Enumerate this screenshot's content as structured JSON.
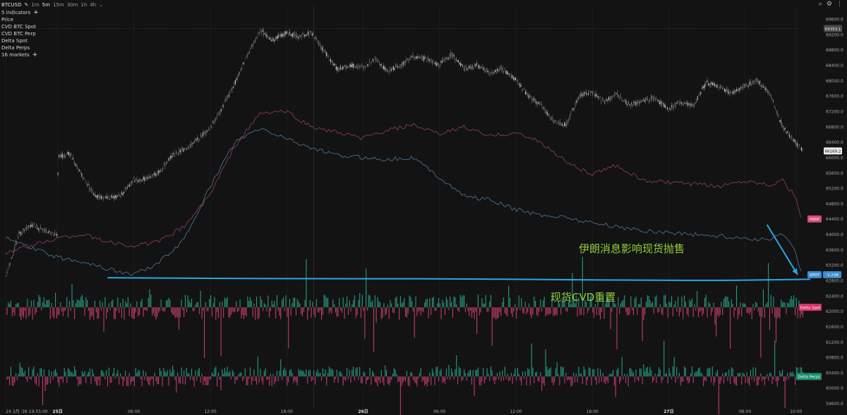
{
  "toolbar": {
    "symbol": "BTCUSD",
    "timeframes": [
      "1m",
      "5m",
      "15m",
      "30m",
      "1h",
      "4h"
    ],
    "active_timeframe": "5m"
  },
  "legend": {
    "indicators_label": "5 indicators",
    "items": [
      "Price",
      "CVD BTC Spot",
      "CVD BTC Perp",
      "Delta Spot",
      "Delta Perps"
    ],
    "markets_label": "16 markets"
  },
  "annotations": {
    "arrow_text": "伊朗消息影响现货抛售",
    "line_text": "现货CVD重置"
  },
  "colors": {
    "background": "#131313",
    "price": "#9c9c9c",
    "cvd_spot": "#4a6f8c",
    "cvd_perp": "#8c3a50",
    "delta_up": "#2bb497",
    "delta_down": "#e0457a",
    "annotation_line": "#27a9e8",
    "annotation_text": "#8fce3a"
  },
  "chart_data": {
    "type": "line",
    "x_axis": {
      "labels": [
        {
          "t": 0,
          "text": "24 2月 '26  19:55:00"
        },
        {
          "t": 4.08,
          "text": "25日"
        },
        {
          "t": 10.08,
          "text": "06:00"
        },
        {
          "t": 16.08,
          "text": "12:00"
        },
        {
          "t": 22.08,
          "text": "18:00"
        },
        {
          "t": 28.08,
          "text": "26日"
        },
        {
          "t": 34.08,
          "text": "06:00"
        },
        {
          "t": 40.08,
          "text": "12:00"
        },
        {
          "t": 46.08,
          "text": "18:00"
        },
        {
          "t": 52.08,
          "text": "27日"
        },
        {
          "t": 58.08,
          "text": "06:00"
        },
        {
          "t": 62.08,
          "text": "10:00"
        }
      ],
      "range_hours": [
        0,
        63.2
      ]
    },
    "y_axis": {
      "ticks": [
        69600,
        69200,
        68800,
        68400,
        68000,
        67600,
        67200,
        66800,
        66400,
        66000,
        65600,
        65200,
        64800,
        64400,
        64000,
        63600,
        63200,
        62800,
        62400,
        62000,
        61600,
        61200,
        60800,
        60400,
        60000,
        59600
      ],
      "tick_labels": [
        "69600.0",
        "69200.0",
        "68800.0",
        "68400.0",
        "68000.0",
        "67600.0",
        "67200.0",
        "66800.0",
        "66400.0",
        "66000.0",
        "65600.0",
        "65200.0",
        "64800.0",
        "64400.0",
        "64000.0",
        "63600.0",
        "63200.0",
        "62800.0",
        "62400.0",
        "62000.0",
        "61600.0",
        "61200.0",
        "60800.0",
        "60400.0",
        "60000.0",
        "59600.0"
      ],
      "range": [
        59500,
        69950
      ]
    },
    "badges": {
      "crosshair_price": "69353.1",
      "last_price": "66169.2",
      "perp_label": "PERP",
      "spot_label": "SPOT",
      "spot_value": "-1.238",
      "delta_spot_label": "Delta Spot",
      "delta_perps_label": "Delta Perps"
    },
    "series": [
      {
        "name": "Price",
        "x": [
          0,
          1,
          2,
          3,
          4,
          4.1,
          5,
          6,
          7,
          8,
          9,
          10,
          11,
          12,
          13,
          14,
          15,
          16,
          17,
          18,
          19,
          20,
          21,
          22,
          23,
          24,
          25,
          26,
          27,
          28,
          29,
          30,
          31,
          32,
          33,
          34,
          35,
          36,
          37,
          38,
          39,
          40,
          41,
          42,
          43,
          44,
          45,
          46,
          47,
          48,
          49,
          50,
          51,
          52,
          53,
          54,
          55,
          56,
          57,
          58,
          59,
          60,
          61,
          62,
          62.6
        ],
        "y": [
          62900,
          64000,
          64250,
          64100,
          64000,
          66000,
          66100,
          65500,
          65000,
          64950,
          65000,
          65400,
          65450,
          65600,
          66050,
          66200,
          66450,
          66750,
          67300,
          67950,
          68700,
          69300,
          69050,
          69250,
          69150,
          69250,
          68750,
          68300,
          68400,
          68350,
          68550,
          68250,
          68400,
          68650,
          68550,
          68400,
          68700,
          68300,
          68400,
          68200,
          68300,
          68050,
          67600,
          67350,
          66950,
          66850,
          67600,
          67700,
          67450,
          67650,
          67350,
          67500,
          67550,
          67250,
          67450,
          67350,
          67950,
          67850,
          67650,
          67850,
          68000,
          67650,
          66800,
          66400,
          66200
        ]
      },
      {
        "name": "CVD BTC Perp",
        "x": [
          0,
          2,
          4,
          6,
          8,
          10,
          12,
          14,
          16,
          18,
          20,
          22,
          24,
          26,
          28,
          30,
          32,
          34,
          36,
          38,
          40,
          42,
          44,
          46,
          48,
          50,
          52,
          54,
          56,
          58,
          60,
          61,
          62,
          62.6
        ],
        "y": [
          63500,
          63700,
          63900,
          64000,
          63800,
          63700,
          63800,
          64200,
          65000,
          66300,
          67150,
          67200,
          66800,
          66650,
          66500,
          66700,
          66850,
          66600,
          66800,
          66550,
          66650,
          66400,
          65900,
          65550,
          65800,
          65400,
          65350,
          65300,
          65250,
          65400,
          65300,
          65400,
          65000,
          64300
        ]
      },
      {
        "name": "CVD BTC Spot",
        "x": [
          0,
          2,
          4,
          6,
          8,
          10,
          12,
          14,
          16,
          18,
          20,
          22,
          24,
          26,
          28,
          30,
          32,
          34,
          36,
          38,
          40,
          42,
          44,
          46,
          48,
          50,
          52,
          54,
          56,
          58,
          60,
          61,
          62,
          62.6
        ],
        "y": [
          63900,
          63650,
          63400,
          63300,
          63100,
          62950,
          63250,
          63850,
          65200,
          66400,
          66750,
          66500,
          66250,
          66050,
          66000,
          65950,
          66000,
          65500,
          65000,
          64900,
          64650,
          64500,
          64450,
          64300,
          64200,
          64100,
          64050,
          64000,
          63950,
          63900,
          63850,
          64050,
          63550,
          62950
        ]
      }
    ],
    "delta_panels": [
      {
        "name": "Delta Spot",
        "baseline": 62100,
        "up_color": "delta_up",
        "down_color": "delta_down"
      },
      {
        "name": "Delta Perps",
        "baseline": 60300,
        "up_color": "delta_up",
        "down_color": "delta_down"
      }
    ],
    "annotation_line": {
      "x": [
        8,
        14,
        20,
        28,
        36,
        44,
        50,
        56,
        60,
        63.2
      ],
      "y": [
        62870,
        62860,
        62845,
        62845,
        62840,
        62820,
        62805,
        62800,
        62815,
        62830
      ]
    },
    "annotation_arrow": {
      "from": [
        59.8,
        64250
      ],
      "to": [
        62.2,
        62950
      ]
    }
  }
}
